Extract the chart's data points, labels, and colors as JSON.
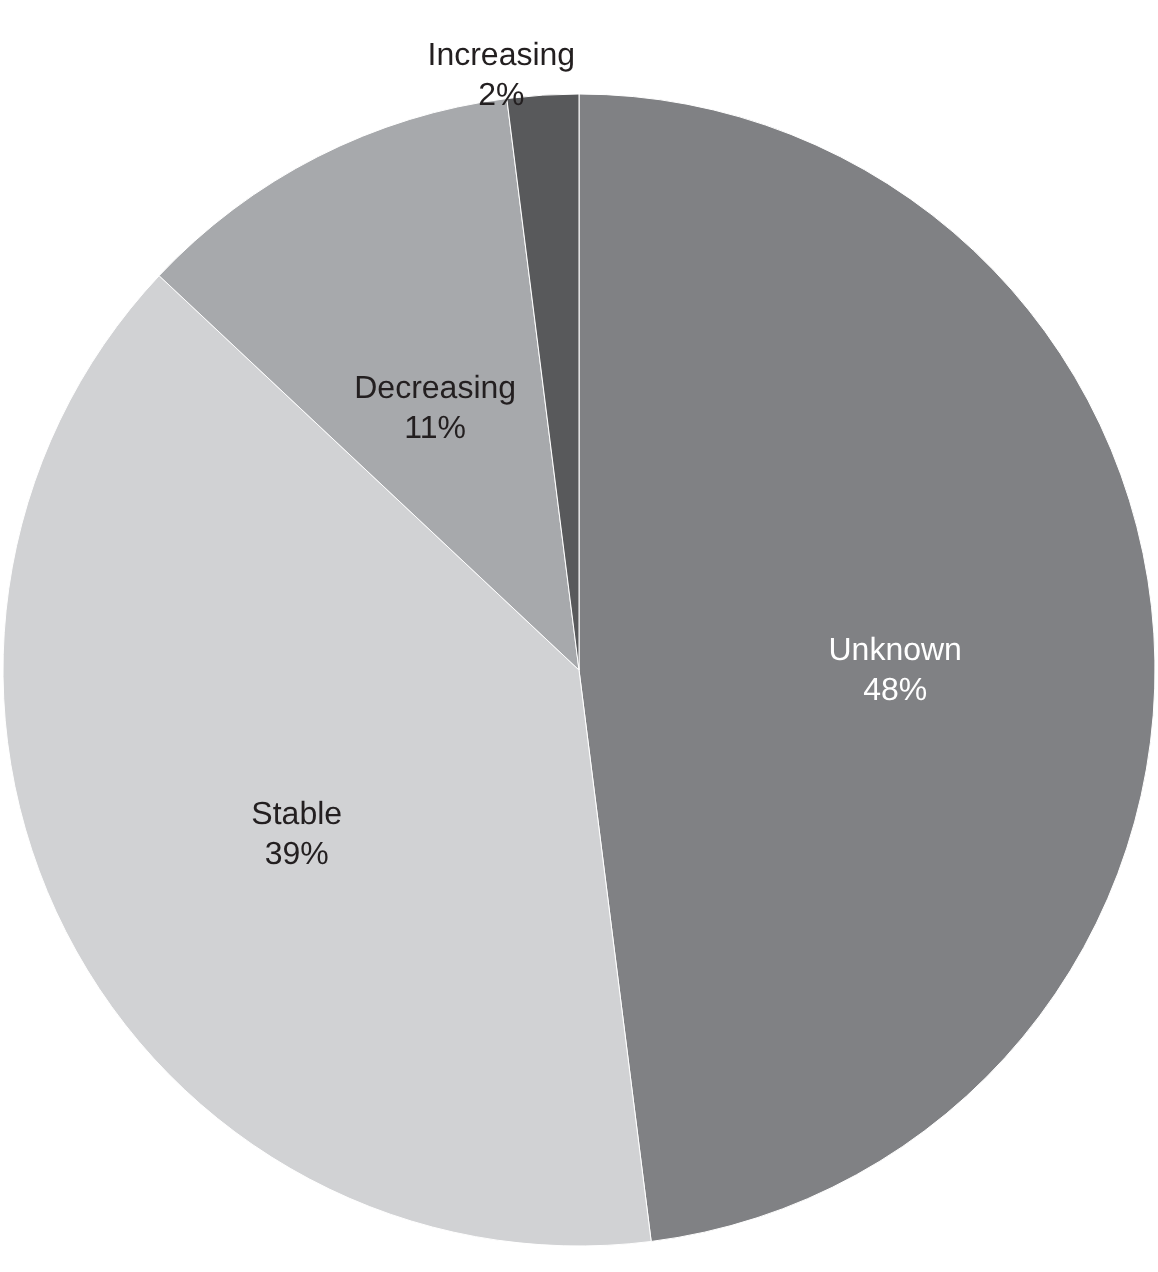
{
  "chart_data": {
    "type": "pie",
    "categories": [
      "Unknown",
      "Stable",
      "Decreasing",
      "Increasing"
    ],
    "values": [
      48,
      39,
      11,
      2
    ],
    "value_labels": [
      "48%",
      "39%",
      "11%",
      "2%"
    ],
    "colors": [
      "#808184",
      "#d1d2d4",
      "#a7a9ac",
      "#58595b"
    ]
  }
}
